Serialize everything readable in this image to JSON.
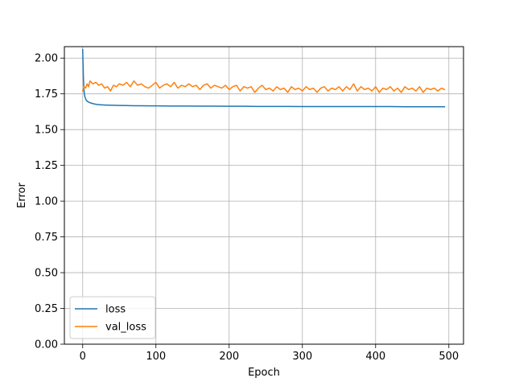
{
  "chart_data": {
    "type": "line",
    "title": "",
    "xlabel": "Epoch",
    "ylabel": "Error",
    "xlim": [
      -25,
      520
    ],
    "ylim": [
      0.0,
      2.08
    ],
    "xticks": [
      0,
      100,
      200,
      300,
      400,
      500
    ],
    "xtick_labels": [
      "0",
      "100",
      "200",
      "300",
      "400",
      "500"
    ],
    "yticks": [
      0.0,
      0.25,
      0.5,
      0.75,
      1.0,
      1.25,
      1.5,
      1.75,
      2.0
    ],
    "ytick_labels": [
      "0.00",
      "0.25",
      "0.50",
      "0.75",
      "1.00",
      "1.25",
      "1.50",
      "1.75",
      "2.00"
    ],
    "grid": true,
    "legend_position": "lower-left",
    "series": [
      {
        "name": "loss",
        "color": "#1f77b4",
        "x": [
          0,
          1,
          2,
          3,
          4,
          5,
          7,
          10,
          15,
          20,
          30,
          40,
          50,
          60,
          70,
          80,
          90,
          100,
          120,
          140,
          160,
          180,
          200,
          220,
          240,
          260,
          280,
          300,
          320,
          340,
          360,
          380,
          400,
          420,
          440,
          460,
          480,
          494
        ],
        "y": [
          2.06,
          1.86,
          1.76,
          1.73,
          1.715,
          1.705,
          1.695,
          1.688,
          1.68,
          1.675,
          1.672,
          1.67,
          1.669,
          1.668,
          1.667,
          1.667,
          1.666,
          1.666,
          1.665,
          1.665,
          1.664,
          1.664,
          1.663,
          1.663,
          1.662,
          1.662,
          1.662,
          1.661,
          1.661,
          1.661,
          1.661,
          1.661,
          1.661,
          1.661,
          1.66,
          1.66,
          1.66,
          1.66
        ]
      },
      {
        "name": "val_loss",
        "color": "#ff7f0e",
        "x": [
          0,
          2,
          4,
          6,
          8,
          10,
          14,
          18,
          22,
          26,
          30,
          34,
          38,
          42,
          46,
          50,
          55,
          60,
          65,
          70,
          75,
          80,
          85,
          90,
          95,
          100,
          105,
          110,
          115,
          120,
          125,
          130,
          135,
          140,
          145,
          150,
          155,
          160,
          165,
          170,
          175,
          180,
          185,
          190,
          195,
          200,
          205,
          210,
          215,
          220,
          225,
          230,
          235,
          240,
          245,
          250,
          255,
          260,
          265,
          270,
          275,
          280,
          285,
          290,
          295,
          300,
          305,
          310,
          315,
          320,
          325,
          330,
          335,
          340,
          345,
          350,
          355,
          360,
          365,
          370,
          375,
          380,
          385,
          390,
          395,
          400,
          405,
          410,
          415,
          420,
          425,
          430,
          435,
          440,
          445,
          450,
          455,
          460,
          465,
          470,
          475,
          480,
          485,
          490,
          494
        ],
        "y": [
          1.77,
          1.8,
          1.79,
          1.82,
          1.8,
          1.84,
          1.82,
          1.83,
          1.81,
          1.82,
          1.79,
          1.8,
          1.77,
          1.81,
          1.8,
          1.82,
          1.81,
          1.83,
          1.8,
          1.84,
          1.81,
          1.82,
          1.8,
          1.79,
          1.81,
          1.83,
          1.79,
          1.81,
          1.82,
          1.8,
          1.83,
          1.79,
          1.81,
          1.8,
          1.82,
          1.8,
          1.81,
          1.78,
          1.81,
          1.82,
          1.79,
          1.81,
          1.8,
          1.79,
          1.81,
          1.78,
          1.8,
          1.81,
          1.77,
          1.8,
          1.79,
          1.8,
          1.76,
          1.79,
          1.81,
          1.78,
          1.79,
          1.77,
          1.8,
          1.78,
          1.79,
          1.76,
          1.8,
          1.78,
          1.79,
          1.77,
          1.8,
          1.78,
          1.79,
          1.76,
          1.79,
          1.8,
          1.77,
          1.79,
          1.78,
          1.8,
          1.77,
          1.8,
          1.78,
          1.82,
          1.77,
          1.8,
          1.78,
          1.79,
          1.77,
          1.8,
          1.76,
          1.79,
          1.78,
          1.8,
          1.77,
          1.79,
          1.76,
          1.8,
          1.78,
          1.79,
          1.77,
          1.8,
          1.76,
          1.79,
          1.78,
          1.79,
          1.77,
          1.79,
          1.78
        ]
      }
    ]
  }
}
